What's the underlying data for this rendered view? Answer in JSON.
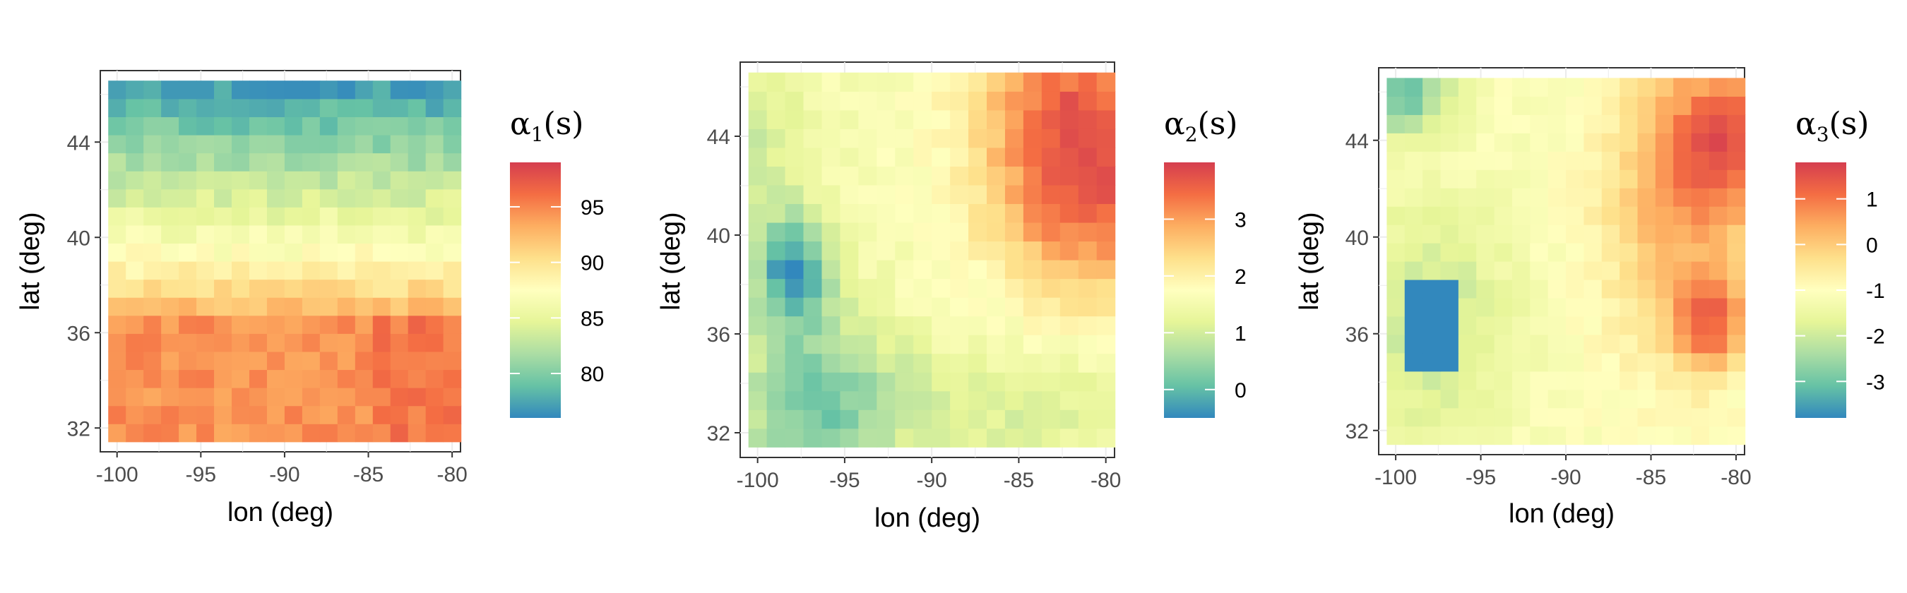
{
  "chart_data": [
    {
      "type": "heatmap",
      "title": "",
      "xlabel": "lon (deg)",
      "ylabel": "lat (deg)",
      "xlim": [
        -101,
        -79.5
      ],
      "ylim": [
        31,
        47
      ],
      "grid": true,
      "x_ticks": [
        "-100",
        "-95",
        "-90",
        "-85",
        "-80"
      ],
      "y_ticks": [
        "32",
        "36",
        "40",
        "44"
      ],
      "colorbar": {
        "title_base": "α",
        "title_sub": "1",
        "title_suffix": "(s)",
        "range": [
          76,
          99
        ],
        "ticks": [
          "80",
          "85",
          "90",
          "95"
        ],
        "palette": "Spectral",
        "placement": "right"
      },
      "value_range": [
        76.5,
        98.5
      ],
      "grid_extent": {
        "lon": [
          -100,
          -80
        ],
        "lat": [
          31.8,
          46.2
        ]
      },
      "grid_size": {
        "cols": 20,
        "rows": 20
      },
      "field_description": "lat gradient: low (~77) at top, ~88 near lat 39, high (~95-98) below lat 36"
    },
    {
      "type": "heatmap",
      "title": "",
      "xlabel": "lon (deg)",
      "ylabel": "lat (deg)",
      "xlim": [
        -101,
        -79.5
      ],
      "ylim": [
        31,
        47
      ],
      "grid": true,
      "x_ticks": [
        "-100",
        "-95",
        "-90",
        "-85",
        "-80"
      ],
      "y_ticks": [
        "32",
        "36",
        "40",
        "44"
      ],
      "colorbar": {
        "title_base": "α",
        "title_sub": "2",
        "title_suffix": "(s)",
        "range": [
          -0.5,
          4
        ],
        "ticks": [
          "0",
          "1",
          "2",
          "3"
        ],
        "palette": "Spectral",
        "placement": "right"
      },
      "value_range": [
        -0.3,
        3.9
      ],
      "grid_extent": {
        "lon": [
          -100,
          -80
        ],
        "lat": [
          31.8,
          46.2
        ]
      },
      "grid_size": {
        "cols": 20,
        "rows": 20
      },
      "field_description": "high (~3.5) in northeast, low (~-0.2) around lon -98 lat 38.5 and southwest"
    },
    {
      "type": "heatmap",
      "title": "",
      "xlabel": "lon (deg)",
      "ylabel": "lat (deg)",
      "xlim": [
        -101,
        -79.5
      ],
      "ylim": [
        31,
        47
      ],
      "grid": true,
      "x_ticks": [
        "-100",
        "-95",
        "-90",
        "-85",
        "-80"
      ],
      "y_ticks": [
        "32",
        "36",
        "40",
        "44"
      ],
      "colorbar": {
        "title_base": "α",
        "title_sub": "3",
        "title_suffix": "(s)",
        "range": [
          -3.8,
          1.8
        ],
        "ticks": [
          "-3",
          "-2",
          "-1",
          "0",
          "1"
        ],
        "palette": "Spectral",
        "placement": "right"
      },
      "value_range": [
        -3.6,
        1.6
      ],
      "grid_extent": {
        "lon": [
          -100,
          -80
        ],
        "lat": [
          31.8,
          46.2
        ]
      },
      "grid_size": {
        "cols": 20,
        "rows": 20
      },
      "field_description": "high (~1.5) along east edge north, low (~-3.5) block lon -99 to -96 lat 35-38 and NW corner"
    }
  ]
}
